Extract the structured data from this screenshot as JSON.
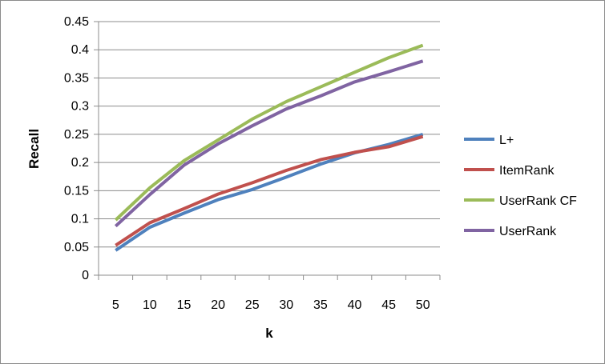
{
  "chart_data": {
    "type": "line",
    "title": "",
    "xlabel": "k",
    "ylabel": "Recall",
    "x": [
      5,
      10,
      15,
      20,
      25,
      30,
      35,
      40,
      45,
      50
    ],
    "yticks": [
      "0",
      "0.05",
      "0.1",
      "0.15",
      "0.2",
      "0.25",
      "0.3",
      "0.35",
      "0.4",
      "0.45"
    ],
    "ylim": [
      0,
      0.45
    ],
    "grid": "horizontal",
    "legend": "right",
    "series": [
      {
        "name": "L+",
        "color": "#4f81bd",
        "values": [
          0.044,
          0.085,
          0.11,
          0.134,
          0.152,
          0.174,
          0.197,
          0.217,
          0.232,
          0.25
        ]
      },
      {
        "name": "ItemRank",
        "color": "#c0504d",
        "values": [
          0.053,
          0.093,
          0.118,
          0.144,
          0.164,
          0.186,
          0.205,
          0.218,
          0.228,
          0.246
        ]
      },
      {
        "name": "UserRank CF",
        "color": "#9bbb59",
        "values": [
          0.098,
          0.155,
          0.203,
          0.24,
          0.277,
          0.308,
          0.334,
          0.36,
          0.386,
          0.408
        ]
      },
      {
        "name": "UserRank",
        "color": "#8064a2",
        "values": [
          0.087,
          0.143,
          0.195,
          0.233,
          0.265,
          0.295,
          0.318,
          0.343,
          0.361,
          0.38
        ]
      }
    ]
  }
}
